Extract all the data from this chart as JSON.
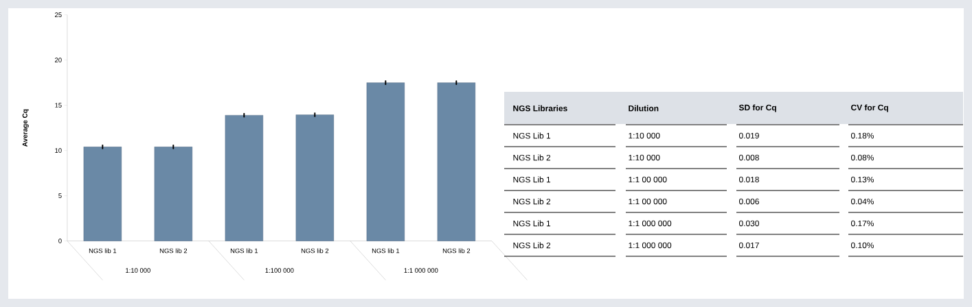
{
  "chart_data": [
    {
      "type": "bar",
      "ylabel": "Average Cq",
      "categories": [
        "NGS lib 1",
        "NGS lib 2",
        "NGS lib 1",
        "NGS lib 2",
        "NGS lib 1",
        "NGS lib 2"
      ],
      "values": [
        10.4,
        10.4,
        13.9,
        13.95,
        17.5,
        17.5
      ],
      "errors": [
        0.019,
        0.008,
        0.018,
        0.006,
        0.03,
        0.017
      ],
      "color": "#6a89a6",
      "ylim": [
        0,
        25
      ],
      "yticks": [
        0,
        5,
        10,
        15,
        20,
        25
      ],
      "grid": false,
      "annotations": [
        "1:10 000",
        "1:100 000",
        "1:1 000 000"
      ]
    },
    {
      "type": "other",
      "categories": [
        "NGS Libraries",
        "Dilution",
        "SD for Cq",
        "CV for Cq"
      ],
      "cell_labels": [
        [
          "NGS Lib 1",
          "1:10 000",
          "0.019",
          "0.18%"
        ],
        [
          "NGS Lib 2",
          "1:10 000",
          "0.008",
          "0.08%"
        ],
        [
          "NGS Lib 1",
          "1:1 00 000",
          "0.018",
          "0.13%"
        ],
        [
          "NGS Lib 2",
          "1:1 00 000",
          "0.006",
          "0.04%"
        ],
        [
          "NGS Lib 1",
          "1:1  000 000",
          "0.030",
          "0.17%"
        ],
        [
          "NGS Lib 2",
          "1:1  000 000",
          "0.017",
          "0.10%"
        ]
      ]
    }
  ]
}
